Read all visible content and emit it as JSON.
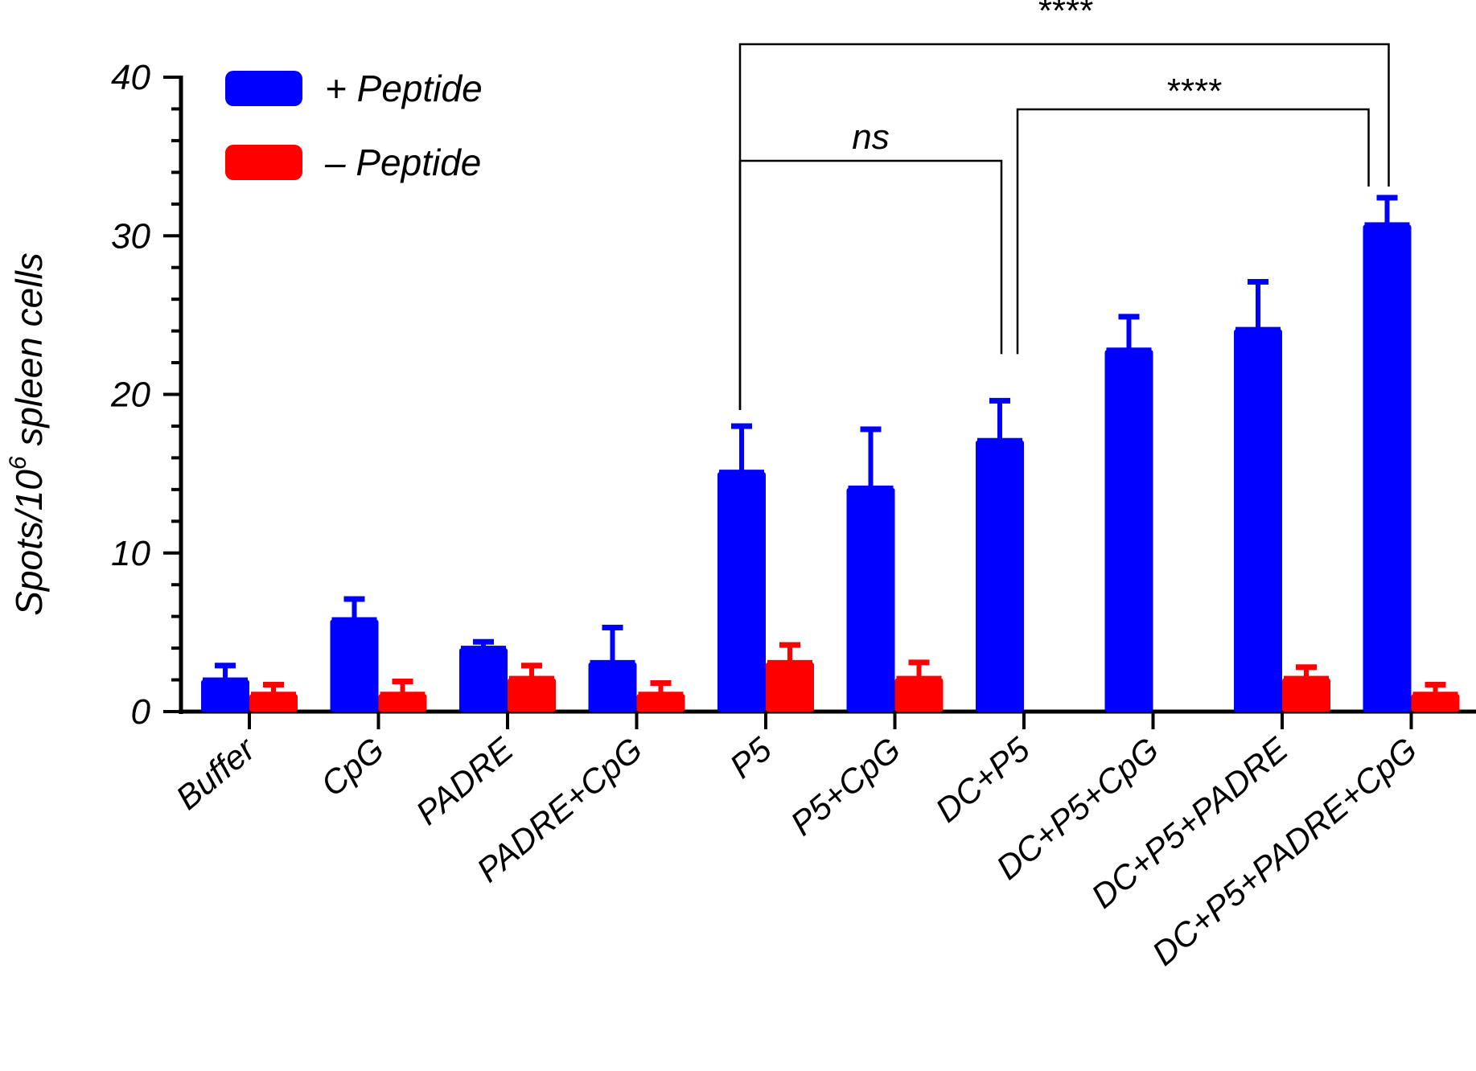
{
  "chart_data": {
    "type": "bar",
    "ylabel_main": "Spots/10",
    "ylabel_sup": "6",
    "ylabel_rest": " spleen cells",
    "ylim": [
      0,
      40
    ],
    "yticks": [
      0,
      10,
      20,
      30,
      40
    ],
    "categories": [
      "Buffer",
      "CpG",
      "PADRE",
      "PADRE+CpG",
      "P5",
      "P5+CpG",
      "DC+P5",
      "DC+P5+CpG",
      "DC+P5+PADRE",
      "DC+P5+PADRE+CpG"
    ],
    "series": [
      {
        "name": "+ Peptide",
        "color": "#0000ff",
        "values": [
          2.0,
          5.8,
          4.0,
          3.1,
          15.1,
          14.1,
          17.1,
          22.8,
          24.1,
          30.7
        ],
        "errors": [
          0.9,
          1.3,
          0.4,
          2.2,
          2.9,
          3.7,
          2.5,
          2.1,
          3.0,
          1.7
        ]
      },
      {
        "name": "– Peptide",
        "color": "#ff0000",
        "values": [
          1.1,
          1.1,
          2.1,
          1.1,
          3.1,
          2.1,
          0,
          0,
          2.1,
          1.1
        ],
        "errors": [
          0.6,
          0.8,
          0.8,
          0.7,
          1.1,
          1.0,
          0,
          0,
          0.7,
          0.6
        ]
      }
    ],
    "legend_position": "top-left",
    "significance": [
      {
        "label": "ns",
        "from": 4,
        "to": 6
      },
      {
        "label": "****",
        "from": 6,
        "to": 9
      },
      {
        "label": "****",
        "from": 4,
        "to": 9
      }
    ]
  }
}
